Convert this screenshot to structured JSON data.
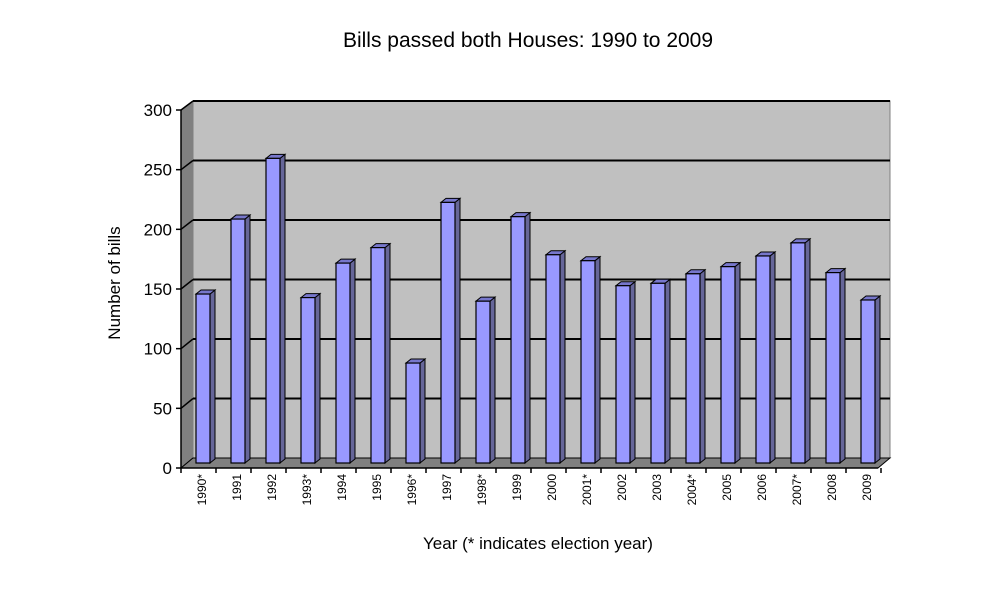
{
  "chart_data": {
    "type": "bar",
    "title": "Bills passed both Houses: 1990 to 2009",
    "xlabel": "Year (* indicates election year)",
    "ylabel": "Number of bills",
    "ylim": [
      0,
      300
    ],
    "yticks": [
      "0",
      "50",
      "100",
      "150",
      "200",
      "250",
      "300"
    ],
    "grid": true,
    "categories": [
      "1990*",
      "1991",
      "1992",
      "1993*",
      "1994",
      "1995",
      "1996*",
      "1997",
      "1998*",
      "1999",
      "2000",
      "2001*",
      "2002",
      "2003",
      "2004*",
      "2005",
      "2006",
      "2007*",
      "2008",
      "2009"
    ],
    "values": [
      142,
      205,
      256,
      139,
      168,
      181,
      84,
      219,
      136,
      207,
      175,
      170,
      149,
      151,
      159,
      165,
      174,
      185,
      160,
      137
    ],
    "colors": {
      "bar_front": "#9999ff",
      "bar_side": "#666699",
      "bar_top": "#7777cc",
      "wall": "#c0c0c0",
      "side_wall": "#808080"
    }
  }
}
